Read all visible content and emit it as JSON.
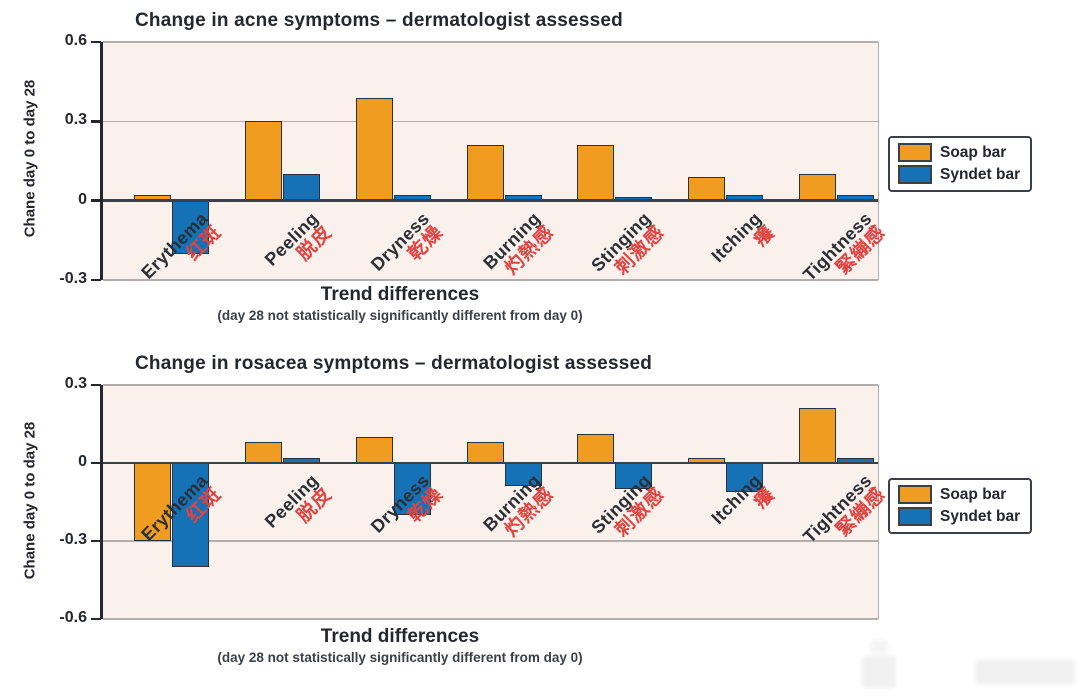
{
  "colors": {
    "soap": "#ef9c20",
    "syndet": "#1572b6",
    "plot_bg": "#faf0ec",
    "axis": "#23272e",
    "grid": "#b3aeac",
    "zero_line": "#3a4049",
    "cjk_red": "#e04441",
    "text_dark": "#23272e"
  },
  "legend": {
    "soap_label": "Soap bar",
    "syndet_label": "Syndet bar"
  },
  "chart_data": [
    {
      "type": "bar",
      "title": "Change in acne symptoms – dermatologist assessed",
      "ylabel": "Chane day 0 to day 28",
      "xlabel": "Trend differences",
      "x_sublabel": "(day 28 not statistically significantly different from day 0)",
      "ylim": [
        -0.3,
        0.6
      ],
      "yticks": [
        0.6,
        0.3,
        0,
        -0.3
      ],
      "grid": true,
      "legend_position": "right",
      "categories": [
        "Erythema",
        "Peeling",
        "Dryness",
        "Burning",
        "Stinging",
        "Itching",
        "Tightness"
      ],
      "categories_cjk": [
        "红斑",
        "脱皮",
        "乾燥",
        "灼熱感",
        "刺激感",
        "癢",
        "緊繃感"
      ],
      "series": [
        {
          "name": "Soap bar",
          "color": "#ef9c20",
          "values": [
            0.02,
            0.3,
            0.39,
            0.21,
            0.21,
            0.09,
            0.1
          ]
        },
        {
          "name": "Syndet bar",
          "color": "#1572b6",
          "values": [
            -0.2,
            0.1,
            0.02,
            0.02,
            0.01,
            0.02,
            0.02
          ]
        }
      ]
    },
    {
      "type": "bar",
      "title": "Change in rosacea symptoms – dermatologist assessed",
      "ylabel": "Chane day 0 to day 28",
      "xlabel": "Trend differences",
      "x_sublabel": "(day 28 not statistically significantly different from day 0)",
      "ylim": [
        -0.6,
        0.3
      ],
      "yticks": [
        0.3,
        0,
        -0.3,
        -0.6
      ],
      "grid": true,
      "legend_position": "right",
      "categories": [
        "Erythema",
        "Peeling",
        "Dryness",
        "Burning",
        "Stinging",
        "Itching",
        "Tightness"
      ],
      "categories_cjk": [
        "红斑",
        "脱皮",
        "乾燥",
        "灼熱感",
        "刺激感",
        "癢",
        "緊繃感"
      ],
      "series": [
        {
          "name": "Soap bar",
          "color": "#ef9c20",
          "values": [
            -0.3,
            0.08,
            0.1,
            0.08,
            0.11,
            0.02,
            0.21
          ]
        },
        {
          "name": "Syndet bar",
          "color": "#1572b6",
          "values": [
            -0.4,
            0.02,
            -0.2,
            -0.09,
            -0.1,
            -0.11,
            0.02
          ]
        }
      ]
    }
  ]
}
